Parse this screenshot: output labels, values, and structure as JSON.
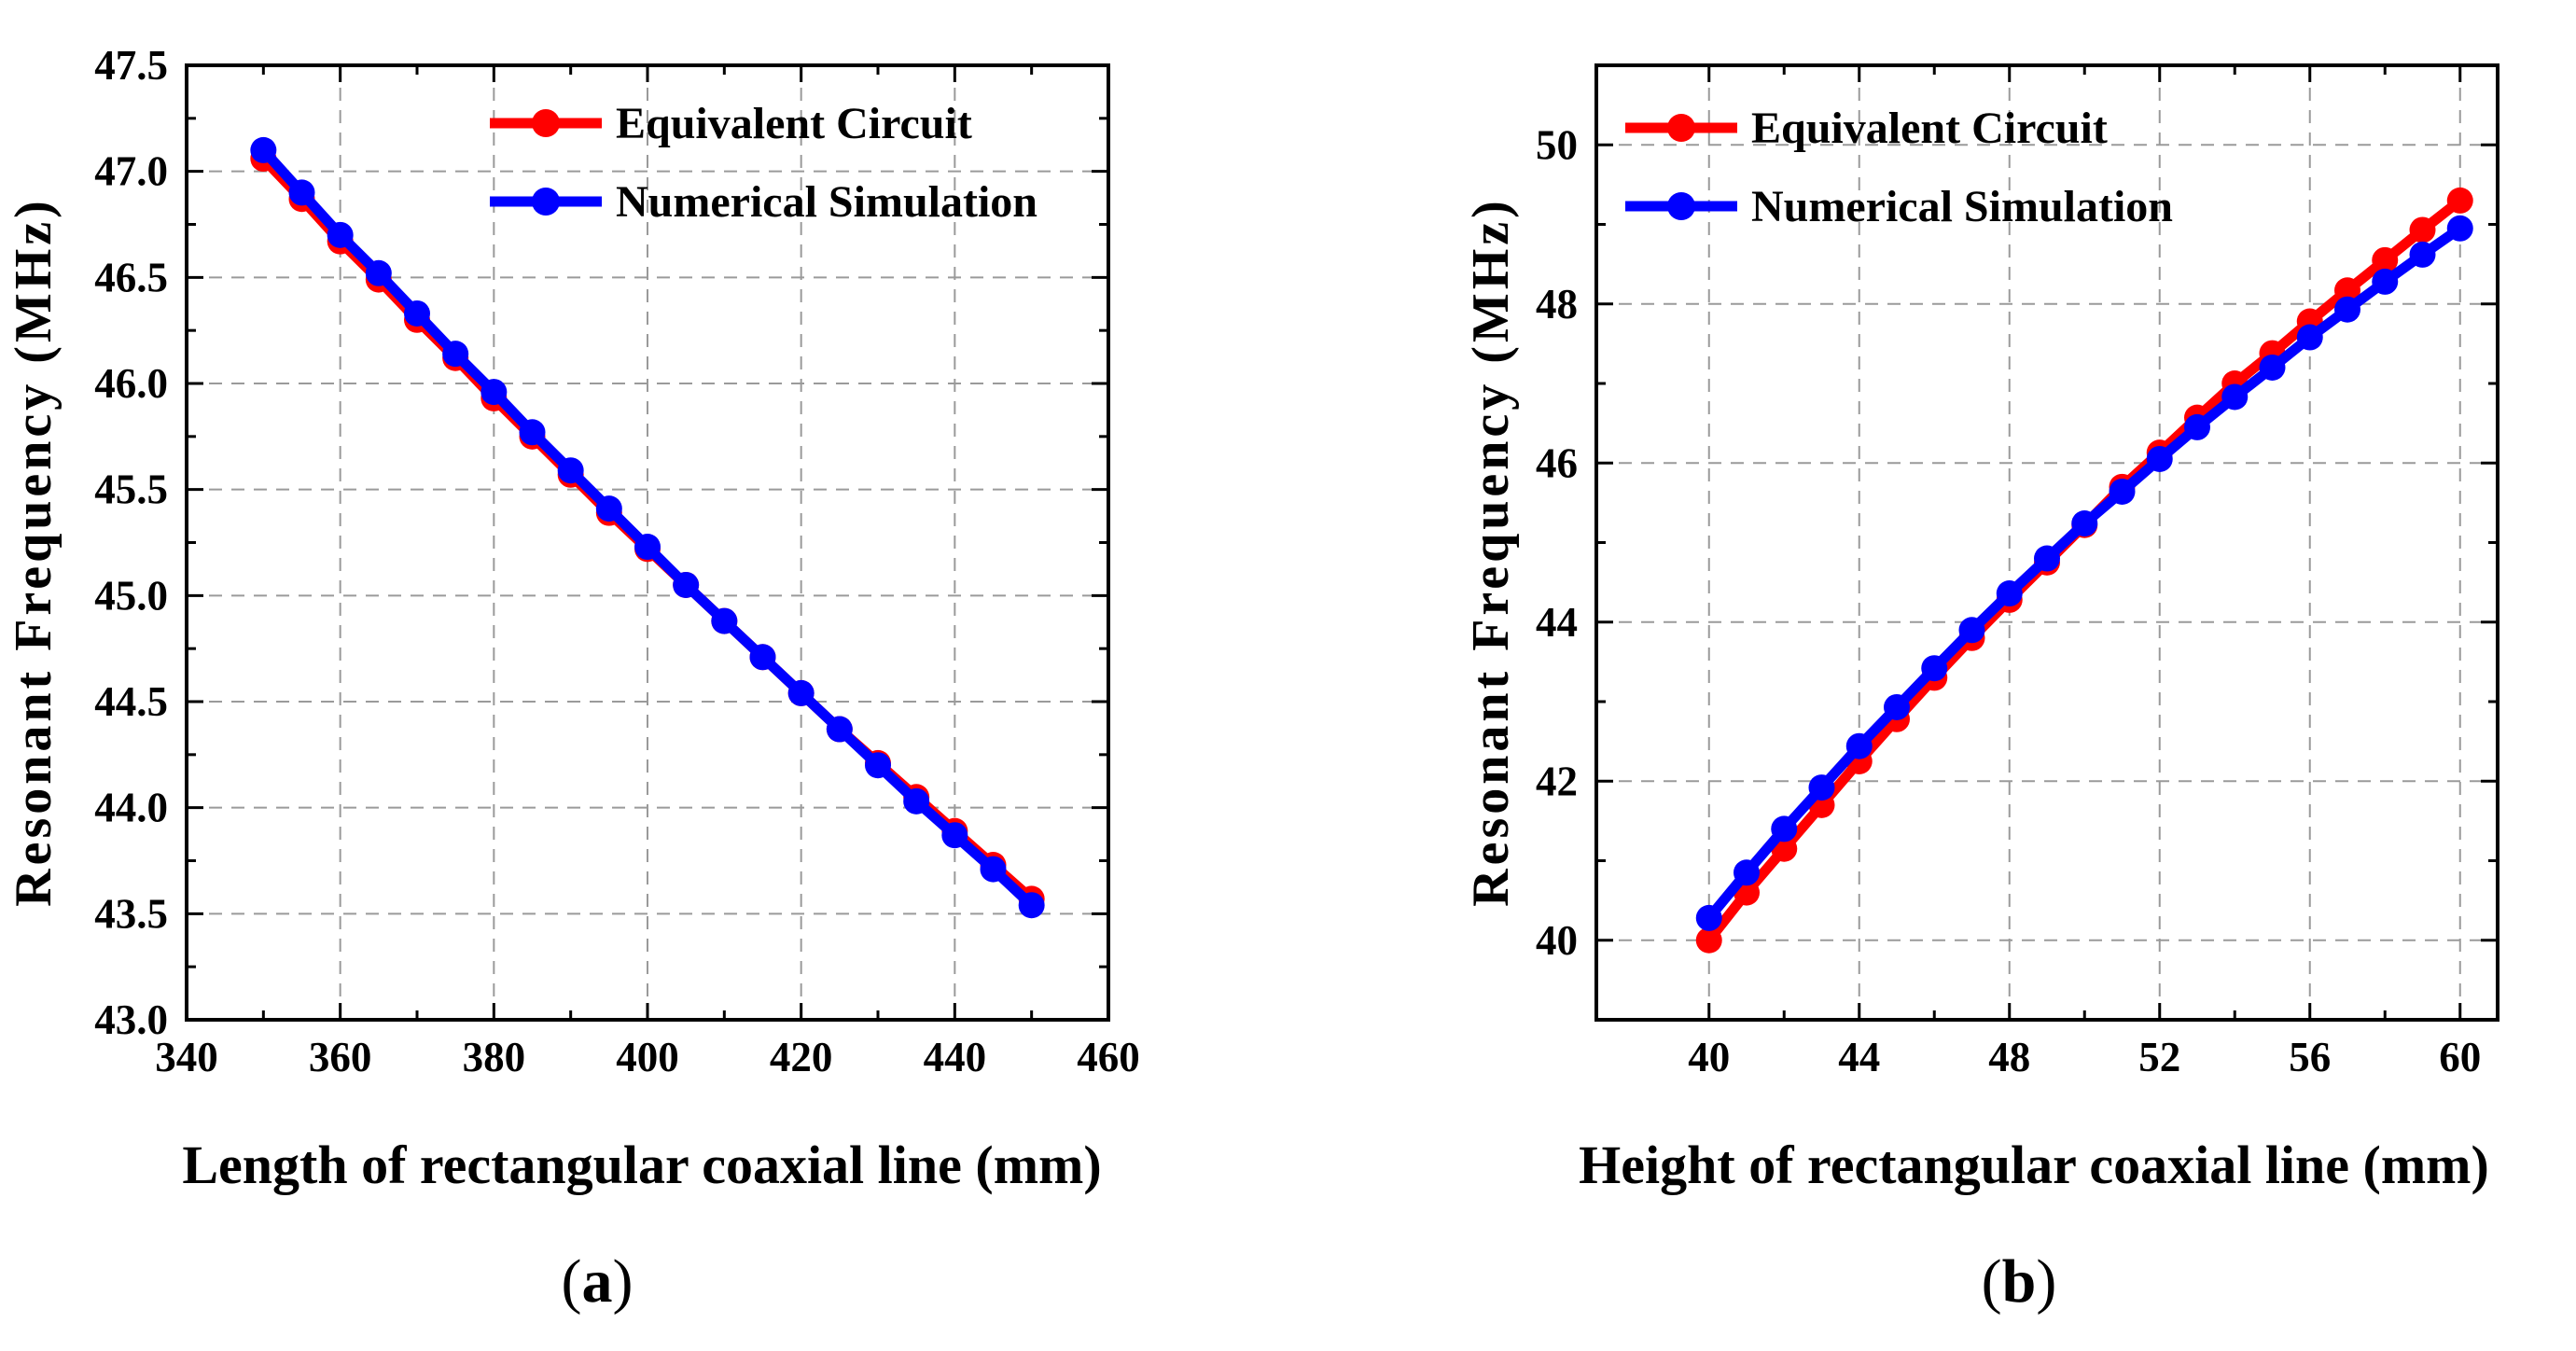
{
  "chart_data": [
    {
      "type": "line",
      "panel_label": "(a)",
      "panel_letter": "a",
      "title": "",
      "xlabel": "Length of rectangular coaxial line (mm)",
      "ylabel": "Resonant Frequency (MHz)",
      "xlim": [
        340,
        460
      ],
      "ylim": [
        43.0,
        47.5
      ],
      "xticks": [
        340,
        360,
        380,
        400,
        420,
        440,
        460
      ],
      "xtick_labels": [
        "340",
        "360",
        "380",
        "400",
        "420",
        "440",
        "460"
      ],
      "yticks": [
        43.0,
        43.5,
        44.0,
        44.5,
        45.0,
        45.5,
        46.0,
        46.5,
        47.0,
        47.5
      ],
      "ytick_labels": [
        "43.0",
        "43.5",
        "44.0",
        "44.5",
        "45.0",
        "45.5",
        "46.0",
        "46.5",
        "47.0",
        "47.5"
      ],
      "grid": true,
      "legend_position": "top-right",
      "x": [
        350,
        355,
        360,
        365,
        370,
        375,
        380,
        385,
        390,
        395,
        400,
        405,
        410,
        415,
        420,
        425,
        430,
        435,
        440,
        445,
        450
      ],
      "series": [
        {
          "name": "Equivalent Circuit",
          "color": "#ff0000",
          "values": [
            47.06,
            46.87,
            46.67,
            46.49,
            46.3,
            46.12,
            45.93,
            45.75,
            45.57,
            45.39,
            45.22,
            45.05,
            44.88,
            44.71,
            44.54,
            44.37,
            44.21,
            44.05,
            43.89,
            43.73,
            43.57
          ]
        },
        {
          "name": "Numerical Simulation",
          "color": "#0000ff",
          "values": [
            47.1,
            46.9,
            46.7,
            46.52,
            46.33,
            46.14,
            45.96,
            45.77,
            45.59,
            45.41,
            45.23,
            45.05,
            44.88,
            44.71,
            44.54,
            44.37,
            44.2,
            44.03,
            43.87,
            43.71,
            43.54
          ]
        }
      ]
    },
    {
      "type": "line",
      "panel_label": "(b)",
      "panel_letter": "b",
      "title": "",
      "xlabel": "Height of rectangular coaxial line (mm)",
      "ylabel": "Resonant Frequency (MHz)",
      "xlim": [
        37,
        61
      ],
      "ylim": [
        39,
        51
      ],
      "xticks": [
        40,
        44,
        48,
        52,
        56,
        60
      ],
      "xtick_labels": [
        "40",
        "44",
        "48",
        "52",
        "56",
        "60"
      ],
      "yticks": [
        40,
        42,
        44,
        46,
        48,
        50
      ],
      "ytick_labels": [
        "40",
        "42",
        "44",
        "46",
        "48",
        "50"
      ],
      "grid": true,
      "legend_position": "top-left",
      "x": [
        40,
        41,
        42,
        43,
        44,
        45,
        46,
        47,
        48,
        49,
        50,
        51,
        52,
        53,
        54,
        55,
        56,
        57,
        58,
        59,
        60
      ],
      "series": [
        {
          "name": "Equivalent Circuit",
          "color": "#ff0000",
          "values": [
            40.0,
            40.6,
            41.15,
            41.7,
            42.25,
            42.78,
            43.3,
            43.8,
            44.28,
            44.75,
            45.22,
            45.7,
            46.13,
            46.57,
            47.0,
            47.38,
            47.78,
            48.17,
            48.55,
            48.93,
            49.3
          ]
        },
        {
          "name": "Numerical Simulation",
          "color": "#0000ff",
          "values": [
            40.28,
            40.85,
            41.4,
            41.92,
            42.44,
            42.93,
            43.42,
            43.9,
            44.36,
            44.8,
            45.24,
            45.64,
            46.05,
            46.45,
            46.83,
            47.2,
            47.58,
            47.93,
            48.28,
            48.62,
            48.95
          ]
        }
      ]
    }
  ]
}
